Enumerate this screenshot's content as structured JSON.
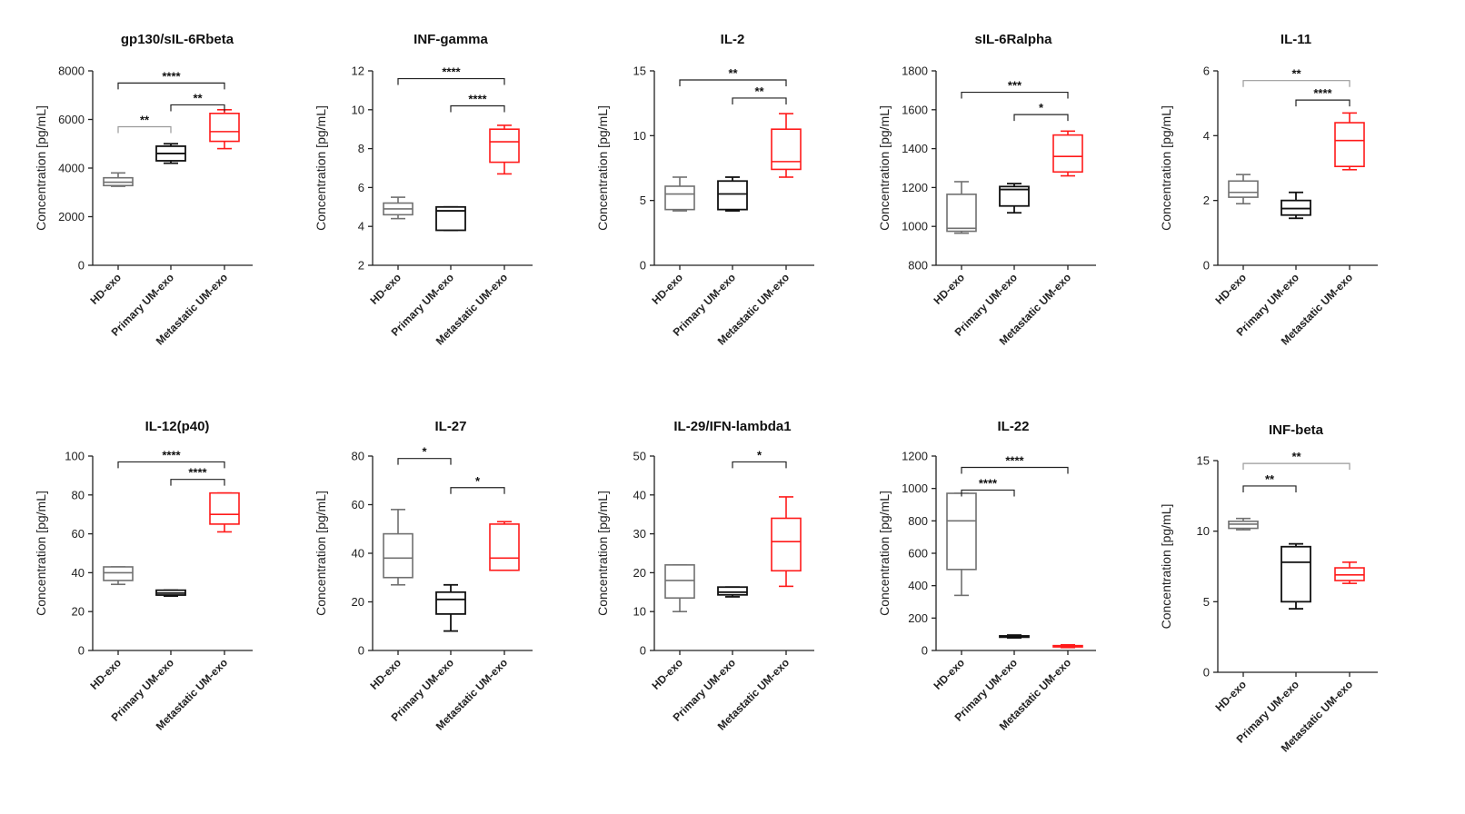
{
  "colors": {
    "hd": "#707070",
    "primary": "#111111",
    "metastatic": "#ff1a1a",
    "bracket": "#222222",
    "bracket_light": "#9a9a9a"
  },
  "chart_data": [
    {
      "type": "box",
      "title": "gp130/sIL-6Rbeta",
      "ylabel": "Concentration [pg/mL]",
      "ylim": [
        0,
        8000
      ],
      "yticks": [
        "0",
        "2000",
        "4000",
        "6000",
        "8000"
      ],
      "categories": [
        "HD-exo",
        "Primary UM-exo",
        "Metastatic UM-exo"
      ],
      "boxes": [
        {
          "min": 3250,
          "q1": 3280,
          "median": 3420,
          "q3": 3600,
          "max": 3800
        },
        {
          "min": 4200,
          "q1": 4300,
          "median": 4600,
          "q3": 4900,
          "max": 5000
        },
        {
          "min": 4800,
          "q1": 5100,
          "median": 5500,
          "q3": 6250,
          "max": 6400
        }
      ],
      "significance": [
        {
          "from": 0,
          "to": 2,
          "label": "****",
          "y": 7500,
          "light": false
        },
        {
          "from": 1,
          "to": 2,
          "label": "**",
          "y": 6600,
          "light": false
        },
        {
          "from": 0,
          "to": 1,
          "label": "**",
          "y": 5700,
          "light": true
        }
      ]
    },
    {
      "type": "box",
      "title": "INF-gamma",
      "ylabel": "Concentration [pg/mL]",
      "ylim": [
        2,
        12
      ],
      "yticks": [
        "2",
        "4",
        "6",
        "8",
        "10",
        "12"
      ],
      "categories": [
        "HD-exo",
        "Primary UM-exo",
        "Metastatic UM-exo"
      ],
      "boxes": [
        {
          "min": 4.4,
          "q1": 4.6,
          "median": 4.9,
          "q3": 5.2,
          "max": 5.5
        },
        {
          "min": 3.8,
          "q1": 3.8,
          "median": 4.8,
          "q3": 5.0,
          "max": 5.0
        },
        {
          "min": 6.7,
          "q1": 7.3,
          "median": 8.35,
          "q3": 9.0,
          "max": 9.2
        }
      ],
      "significance": [
        {
          "from": 0,
          "to": 2,
          "label": "****",
          "y": 11.6,
          "light": false
        },
        {
          "from": 1,
          "to": 2,
          "label": "****",
          "y": 10.2,
          "light": false
        }
      ]
    },
    {
      "type": "box",
      "title": "IL-2",
      "ylabel": "Concentration [pg/mL]",
      "ylim": [
        0,
        15
      ],
      "yticks": [
        "0",
        "5",
        "10",
        "15"
      ],
      "categories": [
        "HD-exo",
        "Primary UM-exo",
        "Metastatic UM-exo"
      ],
      "boxes": [
        {
          "min": 4.2,
          "q1": 4.3,
          "median": 5.5,
          "q3": 6.1,
          "max": 6.8
        },
        {
          "min": 4.2,
          "q1": 4.3,
          "median": 5.5,
          "q3": 6.5,
          "max": 6.8
        },
        {
          "min": 6.8,
          "q1": 7.4,
          "median": 8.0,
          "q3": 10.5,
          "max": 11.7
        }
      ],
      "significance": [
        {
          "from": 0,
          "to": 2,
          "label": "**",
          "y": 14.3,
          "light": false
        },
        {
          "from": 1,
          "to": 2,
          "label": "**",
          "y": 12.9,
          "light": false
        }
      ]
    },
    {
      "type": "box",
      "title": "sIL-6Ralpha",
      "ylabel": "Concentration [pg/mL]",
      "ylim": [
        800,
        1800
      ],
      "yticks": [
        "800",
        "1000",
        "1200",
        "1400",
        "1600",
        "1800"
      ],
      "categories": [
        "HD-exo",
        "Primary UM-exo",
        "Metastatic UM-exo"
      ],
      "boxes": [
        {
          "min": 965,
          "q1": 975,
          "median": 990,
          "q3": 1165,
          "max": 1230
        },
        {
          "min": 1070,
          "q1": 1105,
          "median": 1190,
          "q3": 1205,
          "max": 1220
        },
        {
          "min": 1260,
          "q1": 1280,
          "median": 1360,
          "q3": 1470,
          "max": 1490
        }
      ],
      "significance": [
        {
          "from": 0,
          "to": 2,
          "label": "***",
          "y": 1690,
          "light": false
        },
        {
          "from": 1,
          "to": 2,
          "label": "*",
          "y": 1575,
          "light": false
        }
      ]
    },
    {
      "type": "box",
      "title": "IL-11",
      "ylabel": "Concentration [pg/mL]",
      "ylim": [
        0,
        6
      ],
      "yticks": [
        "0",
        "2",
        "4",
        "6"
      ],
      "categories": [
        "HD-exo",
        "Primary UM-exo",
        "Metastatic UM-exo"
      ],
      "boxes": [
        {
          "min": 1.9,
          "q1": 2.1,
          "median": 2.25,
          "q3": 2.6,
          "max": 2.8
        },
        {
          "min": 1.45,
          "q1": 1.55,
          "median": 1.75,
          "q3": 2.0,
          "max": 2.25
        },
        {
          "min": 2.95,
          "q1": 3.05,
          "median": 3.85,
          "q3": 4.4,
          "max": 4.7
        }
      ],
      "significance": [
        {
          "from": 0,
          "to": 2,
          "label": "**",
          "y": 5.7,
          "light": true
        },
        {
          "from": 1,
          "to": 2,
          "label": "****",
          "y": 5.1,
          "light": false
        }
      ]
    },
    {
      "type": "box",
      "title": "IL-12(p40)",
      "ylabel": "Concentration [pg/mL]",
      "ylim": [
        0,
        100
      ],
      "yticks": [
        "0",
        "20",
        "40",
        "60",
        "80",
        "100"
      ],
      "categories": [
        "HD-exo",
        "Primary UM-exo",
        "Metastatic UM-exo"
      ],
      "boxes": [
        {
          "min": 34,
          "q1": 36,
          "median": 40,
          "q3": 43,
          "max": 43
        },
        {
          "min": 28,
          "q1": 28.5,
          "median": 29.5,
          "q3": 31,
          "max": 31
        },
        {
          "min": 61,
          "q1": 65,
          "median": 70,
          "q3": 81,
          "max": 81
        }
      ],
      "significance": [
        {
          "from": 0,
          "to": 2,
          "label": "****",
          "y": 97,
          "light": false
        },
        {
          "from": 1,
          "to": 2,
          "label": "****",
          "y": 88,
          "light": false
        }
      ]
    },
    {
      "type": "box",
      "title": "IL-27",
      "ylabel": "Concentration [pg/mL]",
      "ylim": [
        0,
        80
      ],
      "yticks": [
        "0",
        "20",
        "40",
        "60",
        "80"
      ],
      "categories": [
        "HD-exo",
        "Primary UM-exo",
        "Metastatic UM-exo"
      ],
      "boxes": [
        {
          "min": 27,
          "q1": 30,
          "median": 38,
          "q3": 48,
          "max": 58
        },
        {
          "min": 8,
          "q1": 15,
          "median": 21,
          "q3": 24,
          "max": 27
        },
        {
          "min": 33,
          "q1": 33,
          "median": 38,
          "q3": 52,
          "max": 53
        }
      ],
      "significance": [
        {
          "from": 0,
          "to": 1,
          "label": "*",
          "y": 79,
          "light": false
        },
        {
          "from": 1,
          "to": 2,
          "label": "*",
          "y": 67,
          "light": false
        }
      ]
    },
    {
      "type": "box",
      "title": "IL-29/IFN-lambda1",
      "ylabel": "Concentration [pg/mL]",
      "ylim": [
        0,
        50
      ],
      "yticks": [
        "0",
        "10",
        "20",
        "30",
        "40",
        "50"
      ],
      "categories": [
        "HD-exo",
        "Primary UM-exo",
        "Metastatic UM-exo"
      ],
      "boxes": [
        {
          "min": 10,
          "q1": 13.5,
          "median": 18,
          "q3": 22,
          "max": 22
        },
        {
          "min": 13.8,
          "q1": 14.3,
          "median": 15,
          "q3": 16.3,
          "max": 16.3
        },
        {
          "min": 16.5,
          "q1": 20.5,
          "median": 28,
          "q3": 34,
          "max": 39.5
        }
      ],
      "significance": [
        {
          "from": 1,
          "to": 2,
          "label": "*",
          "y": 48.5,
          "light": false
        }
      ]
    },
    {
      "type": "box",
      "title": "IL-22",
      "ylabel": "Concentration [pg/mL]",
      "ylim": [
        0,
        1200
      ],
      "yticks": [
        "0",
        "200",
        "400",
        "600",
        "800",
        "1000",
        "1200"
      ],
      "categories": [
        "HD-exo",
        "Primary UM-exo",
        "Metastatic UM-exo"
      ],
      "boxes": [
        {
          "min": 340,
          "q1": 500,
          "median": 800,
          "q3": 970,
          "max": 970
        },
        {
          "min": 78,
          "q1": 82,
          "median": 86,
          "q3": 90,
          "max": 95
        },
        {
          "min": 18,
          "q1": 22,
          "median": 26,
          "q3": 30,
          "max": 35
        }
      ],
      "significance": [
        {
          "from": 0,
          "to": 2,
          "label": "****",
          "y": 1130,
          "light": false
        },
        {
          "from": 0,
          "to": 1,
          "label": "****",
          "y": 990,
          "light": false
        }
      ]
    },
    {
      "type": "box",
      "title": "INF-beta",
      "ylabel": "Concentration [pg/mL]",
      "ylim": [
        0,
        15
      ],
      "yticks": [
        "0",
        "5",
        "10",
        "15"
      ],
      "categories": [
        "HD-exo",
        "Primary UM-exo",
        "Metastatic UM-exo"
      ],
      "boxes": [
        {
          "min": 10.1,
          "q1": 10.2,
          "median": 10.5,
          "q3": 10.7,
          "max": 10.9
        },
        {
          "min": 4.5,
          "q1": 5.0,
          "median": 7.8,
          "q3": 8.9,
          "max": 9.1
        },
        {
          "min": 6.3,
          "q1": 6.5,
          "median": 6.9,
          "q3": 7.4,
          "max": 7.8
        }
      ],
      "significance": [
        {
          "from": 0,
          "to": 2,
          "label": "**",
          "y": 14.8,
          "light": true
        },
        {
          "from": 0,
          "to": 1,
          "label": "**",
          "y": 13.2,
          "light": false
        }
      ]
    }
  ]
}
